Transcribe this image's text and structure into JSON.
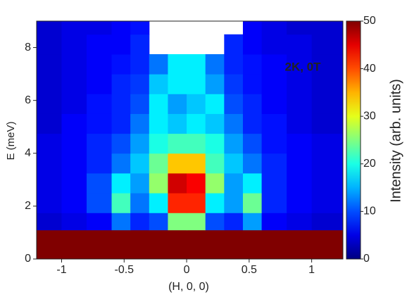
{
  "chart_data": {
    "type": "heatmap",
    "xlabel": "(H, 0, 0)",
    "ylabel": "E (meV)",
    "colorbar_label": "Intensity (arb. units)",
    "annotation": "2K, 0T",
    "annotation_color": "#e6c25a",
    "colormap": "jet",
    "clim": [
      0,
      50
    ],
    "cticks": [
      0,
      10,
      20,
      30,
      40,
      50
    ],
    "xlim": [
      -1.2,
      1.25
    ],
    "xticks": [
      -1,
      -0.5,
      0,
      0.5,
      1
    ],
    "ylim": [
      0,
      9
    ],
    "yticks": [
      0,
      2,
      4,
      6,
      8
    ],
    "xbins": [
      -1.2,
      -1.0,
      -0.8,
      -0.6,
      -0.45,
      -0.3,
      -0.15,
      0,
      0.15,
      0.3,
      0.45,
      0.6,
      0.8,
      1.0,
      1.25
    ],
    "ybins": [
      0,
      1.1,
      1.75,
      2.5,
      3.25,
      4,
      4.75,
      5.5,
      6.25,
      7,
      7.75,
      8.5,
      9
    ],
    "z": [
      [
        50,
        50,
        50,
        50,
        50,
        50,
        50,
        50,
        50,
        50,
        50,
        50,
        50,
        50
      ],
      [
        4,
        5,
        6,
        12,
        8,
        10,
        25,
        25,
        10,
        8,
        14,
        6,
        5,
        4
      ],
      [
        5,
        6,
        10,
        22,
        12,
        18,
        42,
        42,
        18,
        14,
        24,
        8,
        6,
        5
      ],
      [
        5,
        6,
        10,
        18,
        14,
        26,
        46,
        44,
        26,
        14,
        18,
        8,
        6,
        5
      ],
      [
        5,
        6,
        8,
        12,
        16,
        24,
        34,
        34,
        22,
        16,
        12,
        8,
        6,
        5
      ],
      [
        5,
        6,
        8,
        10,
        14,
        20,
        22,
        22,
        20,
        14,
        10,
        7,
        6,
        5
      ],
      [
        4,
        6,
        7,
        8,
        12,
        18,
        16,
        18,
        16,
        12,
        8,
        7,
        5,
        4
      ],
      [
        4,
        5,
        7,
        8,
        10,
        18,
        14,
        16,
        18,
        10,
        8,
        6,
        5,
        4
      ],
      [
        4,
        5,
        6,
        8,
        9,
        16,
        18,
        18,
        14,
        9,
        7,
        6,
        5,
        4
      ],
      [
        4,
        5,
        6,
        7,
        8,
        12,
        18,
        18,
        12,
        8,
        7,
        6,
        5,
        4
      ],
      [
        4,
        5,
        6,
        6,
        8,
        null,
        null,
        null,
        null,
        8,
        6,
        5,
        5,
        4
      ],
      [
        4,
        5,
        5,
        6,
        7,
        null,
        null,
        null,
        null,
        null,
        6,
        5,
        4,
        4
      ]
    ]
  }
}
